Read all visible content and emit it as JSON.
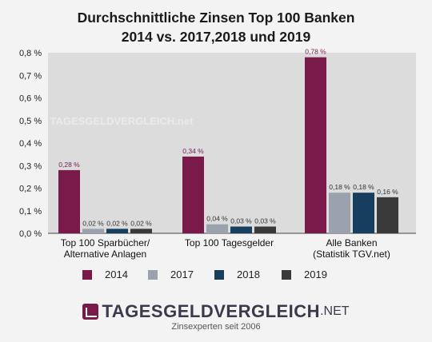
{
  "chart_data": {
    "type": "bar",
    "title_line1": "Durchschnittliche Zinsen Top 100 Banken",
    "title_line2": "2014 vs. 2017,2018 und 2019",
    "categories": [
      [
        "Top 100 Sparbücher/",
        "Alternative Anlagen"
      ],
      [
        "Top 100 Tagesgelder"
      ],
      [
        "Alle Banken",
        "(Statistik TGV.net)"
      ]
    ],
    "series": [
      {
        "name": "2014",
        "color": "#7a1a4a",
        "values": [
          0.28,
          0.34,
          0.78
        ],
        "labels": [
          "0,28 %",
          "0,34 %",
          "0,78 %"
        ]
      },
      {
        "name": "2017",
        "color": "#9aa3ad",
        "values": [
          0.02,
          0.04,
          0.18
        ],
        "labels": [
          "0,02 %",
          "0,04 %",
          "0,18 %"
        ]
      },
      {
        "name": "2018",
        "color": "#173d5f",
        "values": [
          0.02,
          0.03,
          0.18
        ],
        "labels": [
          "0,02 %",
          "0,03 %",
          "0,18 %"
        ]
      },
      {
        "name": "2019",
        "color": "#3a3a3a",
        "values": [
          0.02,
          0.03,
          0.16
        ],
        "labels": [
          "0,02 %",
          "0,03 %",
          "0,16 %"
        ]
      }
    ],
    "yticks": [
      "0,0 %",
      "0,1 %",
      "0,2 %",
      "0,3 %",
      "0,4 %",
      "0,5 %",
      "0,6 %",
      "0,7 %",
      "0,8 %"
    ],
    "ylim": [
      0,
      0.8
    ],
    "grid": false,
    "legend_position": "bottom",
    "watermark": "TAGESGELDVERGLEICH.net"
  },
  "logo": {
    "main": "TAGESGELDVERGLEICH",
    "tld": ".NET",
    "tagline": "Zinsexperten seit 2006"
  }
}
